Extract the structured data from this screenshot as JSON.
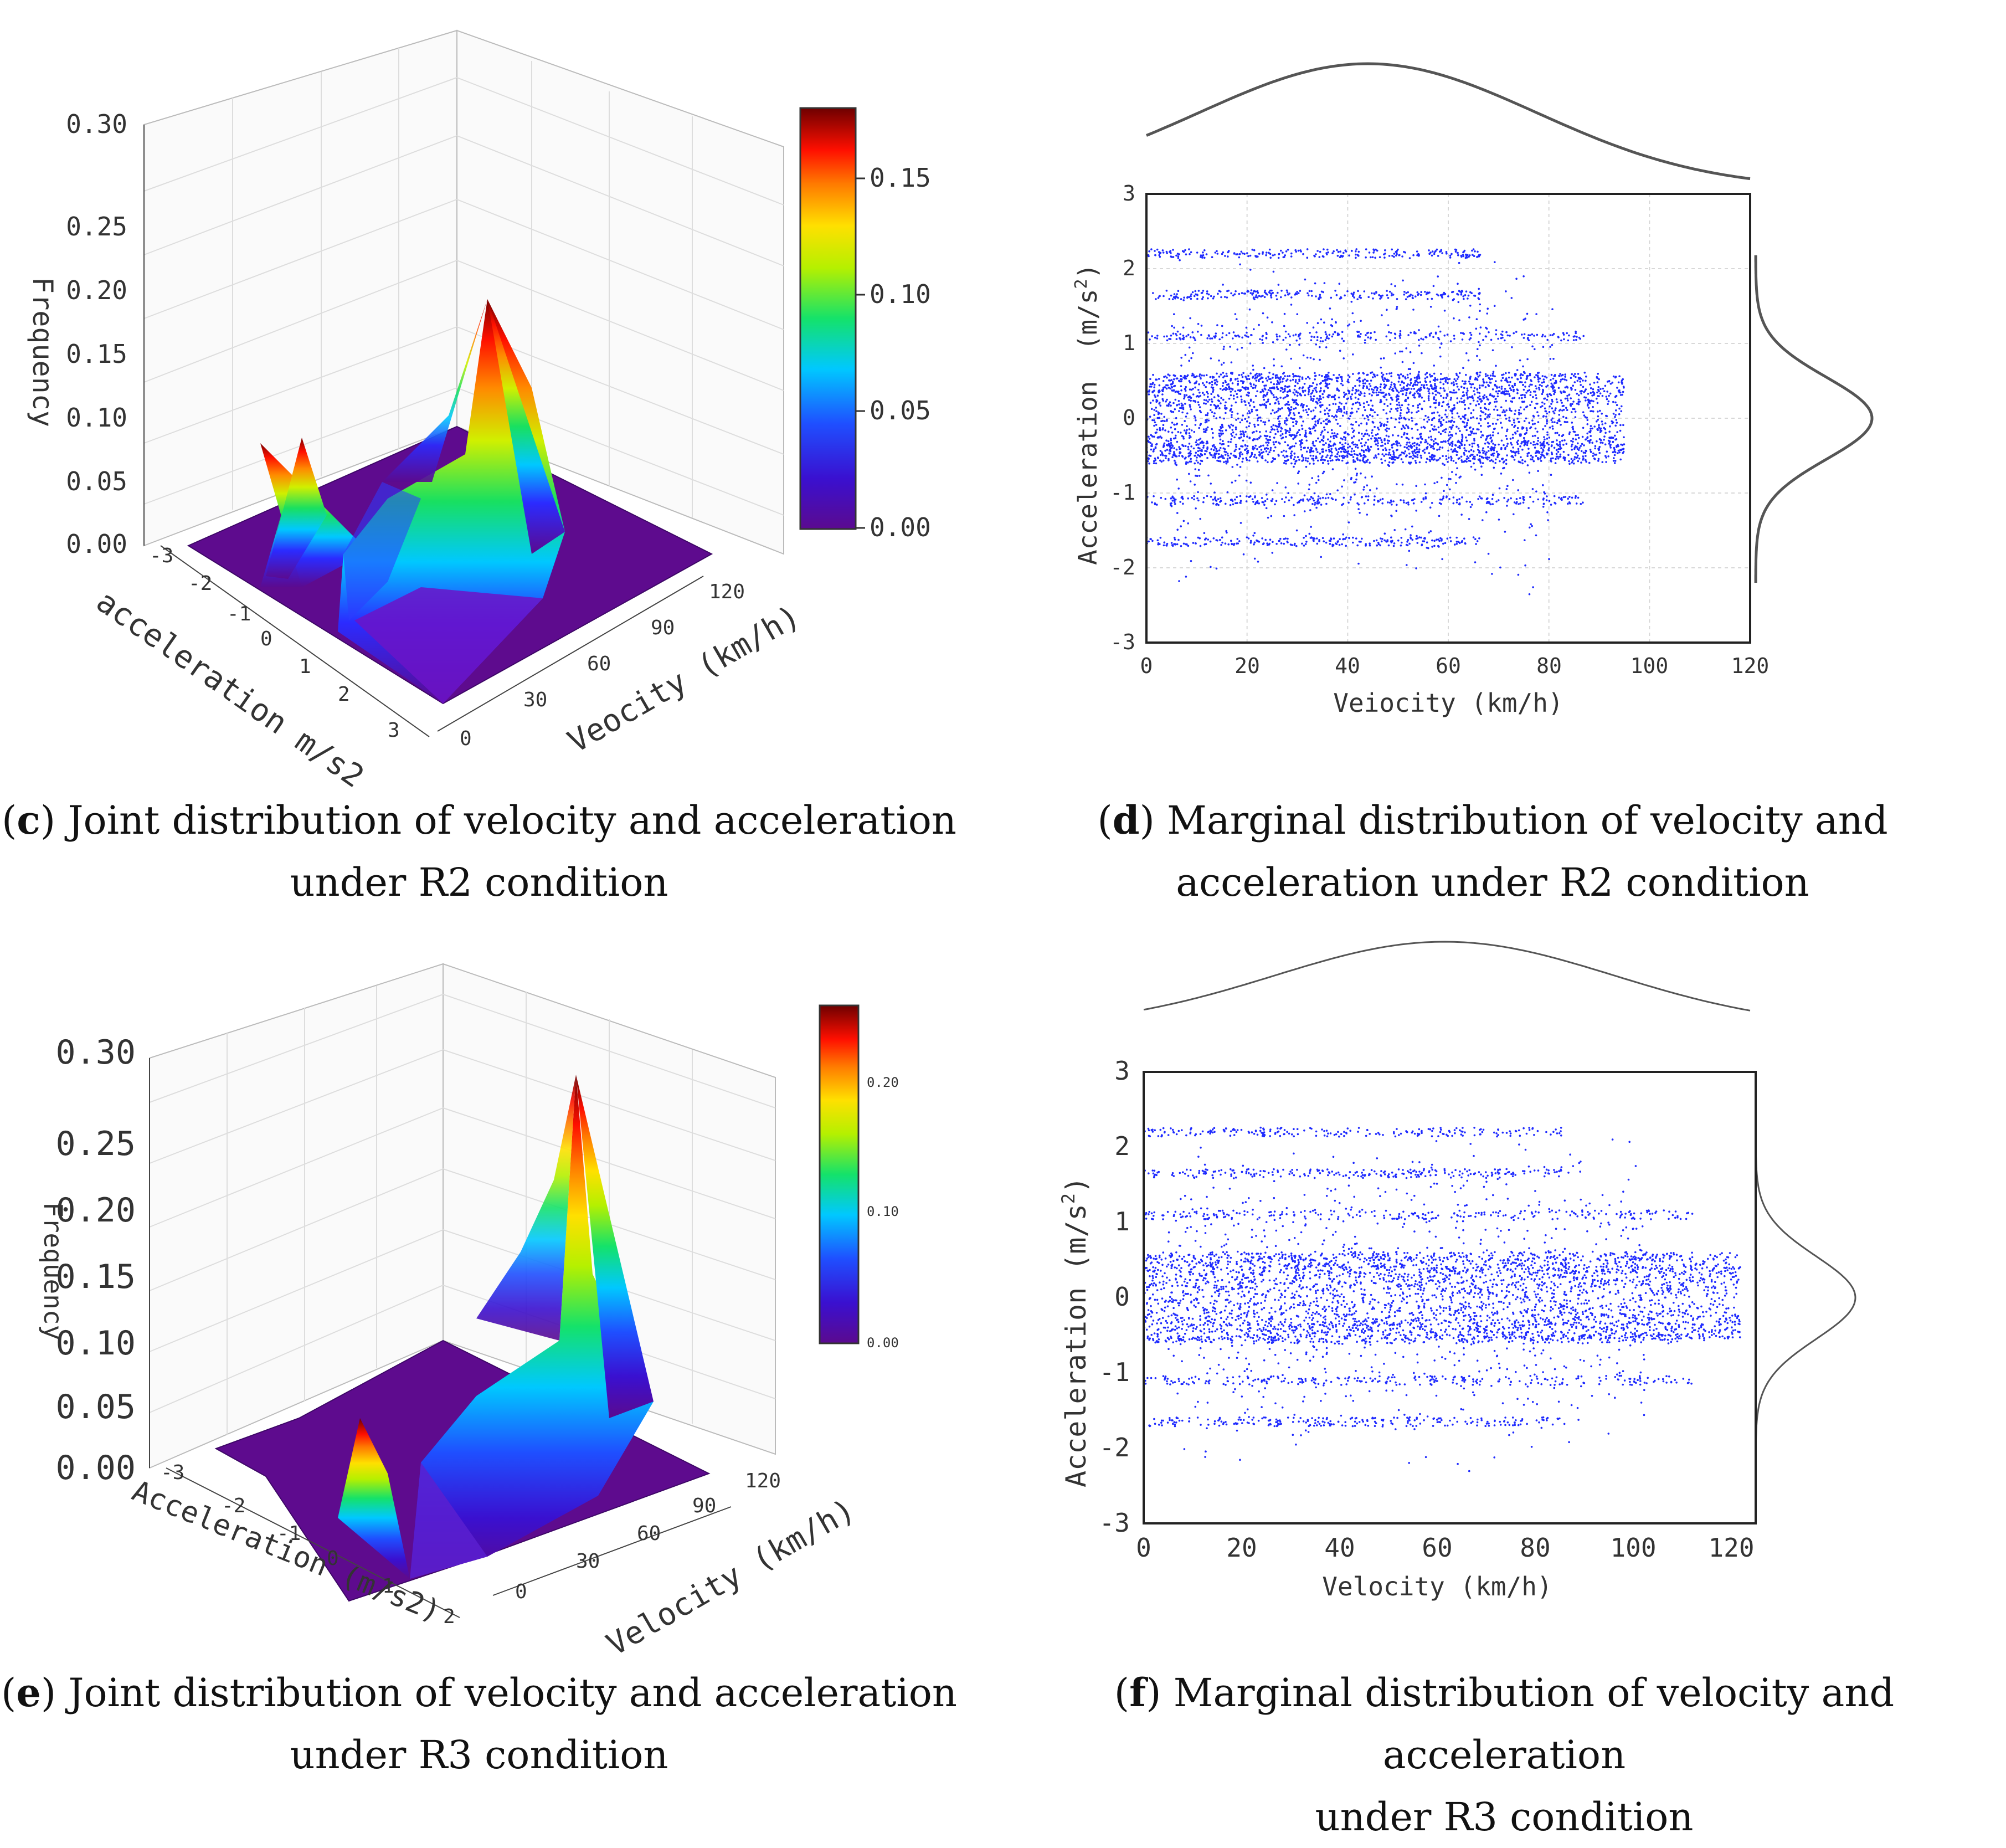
{
  "chart_data": [
    {
      "panel": "c",
      "type": "surface3d",
      "title": "",
      "zlabel": "Frequency",
      "xlabel": "acceleration m/s2",
      "ylabel": "Veocity (km/h)",
      "z_ticks": [
        "0.00",
        "0.05",
        "0.10",
        "0.15",
        "0.20",
        "0.25",
        "0.30"
      ],
      "x_ticks": [
        "-3",
        "-2",
        "-1",
        "0",
        "1",
        "2",
        "3"
      ],
      "y_ticks": [
        "0",
        "30",
        "60",
        "90",
        "120"
      ],
      "zlim": [
        0,
        0.3
      ],
      "colorbar": {
        "min": 0.0,
        "max": 0.18,
        "ticks": [
          "0.00",
          "0.05",
          "0.10",
          "0.15"
        ]
      },
      "peaks": [
        {
          "acceleration": -1.5,
          "velocity": 5,
          "frequency": 0.065
        },
        {
          "acceleration": 0,
          "velocity": 60,
          "frequency": 0.175
        }
      ]
    },
    {
      "panel": "d",
      "type": "scatter",
      "xlabel": "Veiocity (km/h)",
      "ylabel": "Acceleration (m/s2)",
      "ylabel_base": "Acceleration  (m/s",
      "ylabel_exp": "2",
      "ylabel_close": ")",
      "x_ticks": [
        "0",
        "20",
        "40",
        "60",
        "80",
        "100",
        "120"
      ],
      "y_ticks": [
        "-3",
        "-2",
        "-1",
        "0",
        "1",
        "2",
        "3"
      ],
      "xlim": [
        0,
        120
      ],
      "ylim": [
        -3,
        3
      ],
      "v_max": 95,
      "marginal_x_peak": 44,
      "marginal_y_peak": 0,
      "point_color": "#1f2bff"
    },
    {
      "panel": "e",
      "type": "surface3d",
      "zlabel": "Frequency",
      "xlabel": "Acceleration (m/s2)",
      "ylabel": "Velocity (km/h)",
      "z_ticks": [
        "0.00",
        "0.05",
        "0.10",
        "0.15",
        "0.20",
        "0.25",
        "0.30"
      ],
      "x_ticks": [
        "-3",
        "-2",
        "-1",
        "0",
        "1",
        "2"
      ],
      "y_ticks": [
        "0",
        "30",
        "60",
        "90",
        "120"
      ],
      "zlim": [
        0,
        0.3
      ],
      "colorbar": {
        "min": 0.0,
        "max": 0.26,
        "ticks": [
          "0.00",
          "0.10",
          "0.20"
        ]
      },
      "peaks": [
        {
          "acceleration": -1.0,
          "velocity": 5,
          "frequency": 0.05
        },
        {
          "acceleration": 0,
          "velocity": 80,
          "frequency": 0.26
        }
      ]
    },
    {
      "panel": "f",
      "type": "scatter",
      "xlabel": "Velocity (km/h)",
      "ylabel": "Acceleration (m/s2)",
      "ylabel_base": "Acceleration (m/s",
      "ylabel_exp": "2",
      "ylabel_close": ")",
      "x_ticks": [
        "0",
        "20",
        "40",
        "60",
        "80",
        "100",
        "120"
      ],
      "y_ticks": [
        "-3",
        "-2",
        "-1",
        "0",
        "1",
        "2",
        "3"
      ],
      "xlim": [
        0,
        125
      ],
      "ylim": [
        -3,
        3
      ],
      "v_max": 123,
      "marginal_x_peak": 62,
      "marginal_y_peak": 0,
      "point_color": "#1f2bff"
    }
  ],
  "captions": {
    "c": {
      "letter": "c",
      "line1": " Joint distribution of velocity and acceleration",
      "line2": "under R2 condition"
    },
    "d": {
      "letter": "d",
      "line1": " Marginal distribution of velocity and",
      "line2": "acceleration under R2 condition"
    },
    "e": {
      "letter": "e",
      "line1": " Joint distribution of velocity and acceleration",
      "line2": "under R3 condition"
    },
    "f": {
      "letter": "f",
      "line1": " Marginal distribution of velocity and acceleration",
      "line2": "under R3 condition"
    }
  }
}
